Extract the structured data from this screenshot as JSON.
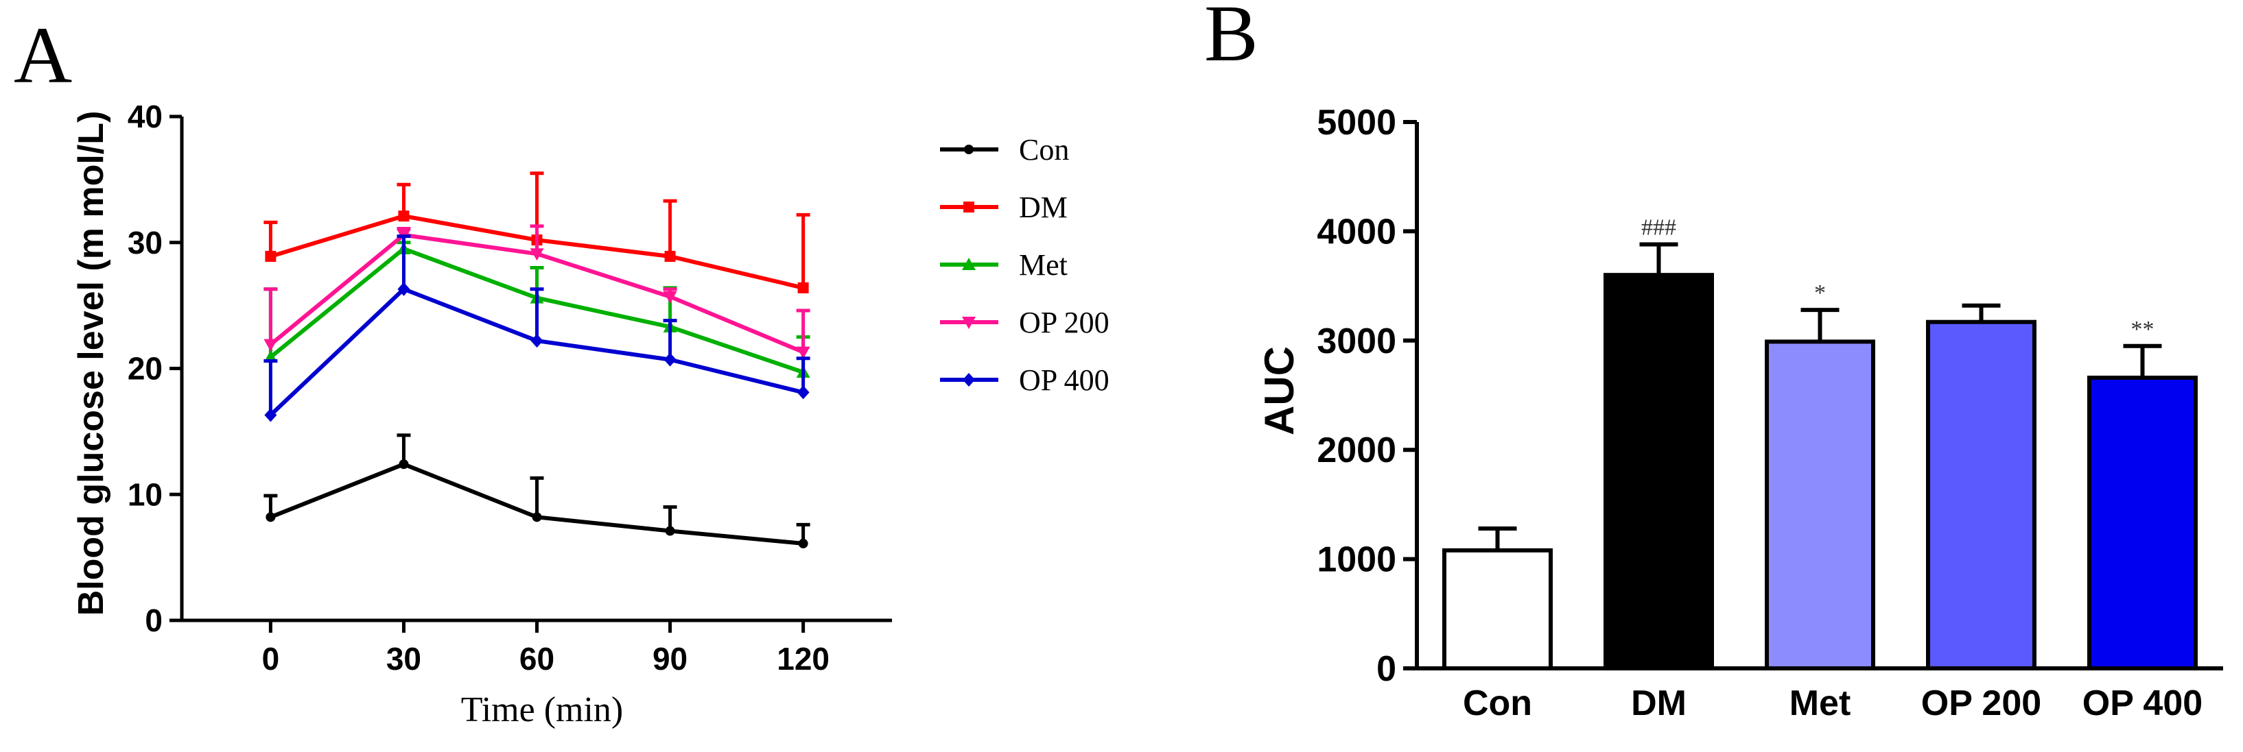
{
  "chart_data": [
    {
      "panel_label": "A",
      "type": "line",
      "title": "",
      "xlabel": "Time (min)",
      "ylabel": "Blood glucose level (m mol/L)",
      "x": [
        0,
        30,
        60,
        90,
        120
      ],
      "xlim": [
        -20,
        140
      ],
      "ylim": [
        0,
        40
      ],
      "yticks": [
        0,
        10,
        20,
        30,
        40
      ],
      "grid": false,
      "legend_position": "right",
      "series": [
        {
          "name": "Con",
          "color": "#000000",
          "marker": "circle",
          "values": [
            8.2,
            12.4,
            8.2,
            7.1,
            6.1
          ],
          "errors": [
            1.7,
            2.3,
            3.1,
            1.9,
            1.5
          ]
        },
        {
          "name": "DM",
          "color": "#ff0000",
          "marker": "square",
          "values": [
            28.9,
            32.1,
            30.2,
            28.9,
            26.4
          ],
          "errors": [
            2.7,
            2.5,
            5.3,
            4.4,
            5.8
          ]
        },
        {
          "name": "Met",
          "color": "#00b000",
          "marker": "triangle-up",
          "values": [
            20.9,
            29.5,
            25.6,
            23.3,
            19.7
          ],
          "errors": [
            5.4,
            0.5,
            2.4,
            3.1,
            2.8
          ]
        },
        {
          "name": "OP 200",
          "color": "#ff1493",
          "marker": "triangle-down",
          "values": [
            21.9,
            30.6,
            29.1,
            25.7,
            21.3
          ],
          "errors": [
            4.4,
            0.5,
            2.2,
            0.6,
            3.3
          ]
        },
        {
          "name": "OP 400",
          "color": "#0000d0",
          "marker": "diamond",
          "values": [
            16.3,
            26.3,
            22.2,
            20.7,
            18.1
          ],
          "errors": [
            4.3,
            4.2,
            4.1,
            3.1,
            2.7
          ]
        }
      ]
    },
    {
      "panel_label": "B",
      "type": "bar",
      "title": "",
      "xlabel": "",
      "ylabel": "AUC",
      "categories": [
        "Con",
        "DM",
        "Met",
        "OP 200",
        "OP 400"
      ],
      "values": [
        1080,
        3600,
        2990,
        3170,
        2660
      ],
      "errors": [
        200,
        280,
        290,
        150,
        290
      ],
      "colors": [
        "#ffffff",
        "#000000",
        "#8c8cff",
        "#5a5aff",
        "#0000f0"
      ],
      "annotations": [
        "",
        "###",
        "*",
        "",
        "**"
      ],
      "ylim": [
        0,
        5000
      ],
      "yticks": [
        0,
        1000,
        2000,
        3000,
        4000,
        5000
      ],
      "grid": false
    }
  ]
}
